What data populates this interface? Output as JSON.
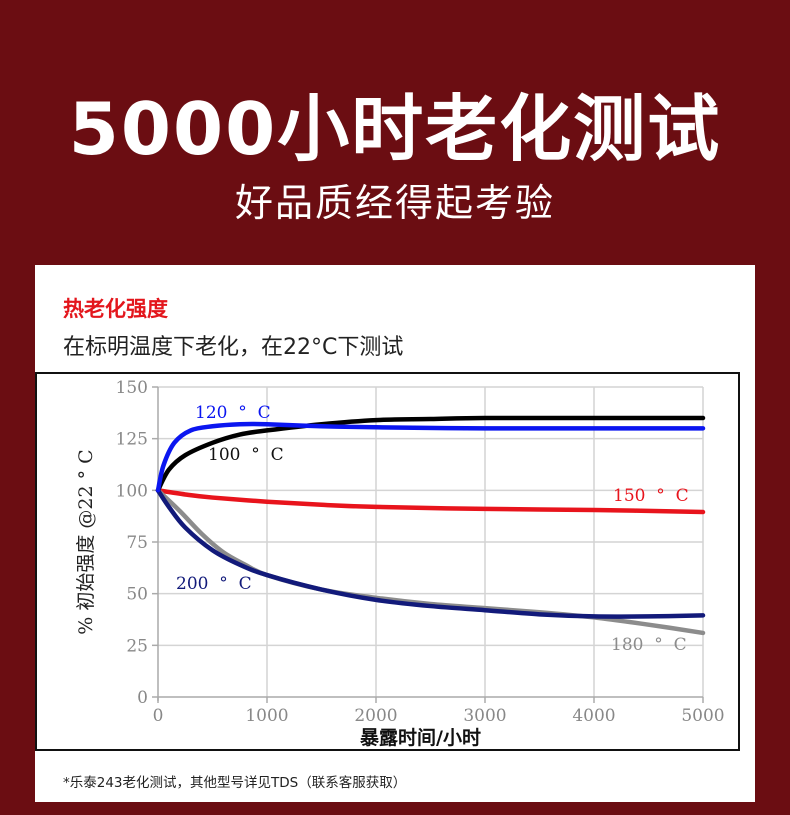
{
  "header": {
    "title": "5000小时老化测试",
    "subtitle": "好品质经得起考验"
  },
  "card": {
    "title": "热老化强度",
    "subtitle": "在标明温度下老化，在22°C下测试",
    "footnote": "*乐泰243老化测试，其他型号详见TDS（联系客服获取）"
  },
  "colors": {
    "background": "#6b0d12",
    "title_red": "#e3161c"
  },
  "chart_data": {
    "type": "line",
    "xlabel": "暴露时间/小时",
    "ylabel": "% 初始强度  @22 ° C",
    "xlim": [
      0,
      5000
    ],
    "ylim": [
      0,
      150
    ],
    "x_ticks": [
      0,
      1000,
      2000,
      3000,
      4000,
      5000
    ],
    "y_ticks": [
      0,
      25,
      50,
      75,
      100,
      125,
      150
    ],
    "grid": true,
    "series": [
      {
        "name": "100 ° C",
        "color": "#000000",
        "x": [
          0,
          100,
          250,
          500,
          750,
          1000,
          1500,
          2000,
          2500,
          3000,
          4000,
          5000
        ],
        "y": [
          100,
          110,
          117,
          123,
          127,
          129,
          132,
          134,
          134.5,
          135,
          135,
          135
        ]
      },
      {
        "name": "120 ° C",
        "color": "#0b16f0",
        "x": [
          0,
          50,
          150,
          300,
          500,
          750,
          1000,
          1500,
          2000,
          3000,
          4000,
          5000
        ],
        "y": [
          100,
          112,
          123,
          129,
          131,
          132,
          132,
          131,
          130.5,
          130,
          130,
          130
        ]
      },
      {
        "name": "150 ° C",
        "color": "#e8141c",
        "x": [
          0,
          250,
          500,
          1000,
          1500,
          2000,
          3000,
          4000,
          5000
        ],
        "y": [
          100,
          98,
          96.5,
          94.5,
          93,
          92,
          91,
          90.5,
          89.5
        ]
      },
      {
        "name": "180 ° C",
        "color": "#8c8c8c",
        "x": [
          0,
          200,
          400,
          600,
          800,
          1000,
          1500,
          2000,
          2500,
          3000,
          3500,
          4000,
          4500,
          5000
        ],
        "y": [
          100,
          90,
          79,
          70,
          64,
          59,
          52,
          48,
          45,
          43,
          41,
          38.5,
          35,
          31
        ]
      },
      {
        "name": "200 ° C",
        "color": "#121a7a",
        "x": [
          0,
          100,
          250,
          500,
          750,
          1000,
          1500,
          2000,
          2500,
          3000,
          3500,
          4000,
          4500,
          5000
        ],
        "y": [
          100,
          92,
          82,
          71,
          64,
          59,
          52,
          47,
          44,
          42,
          40,
          39,
          39,
          39.5
        ]
      }
    ]
  }
}
